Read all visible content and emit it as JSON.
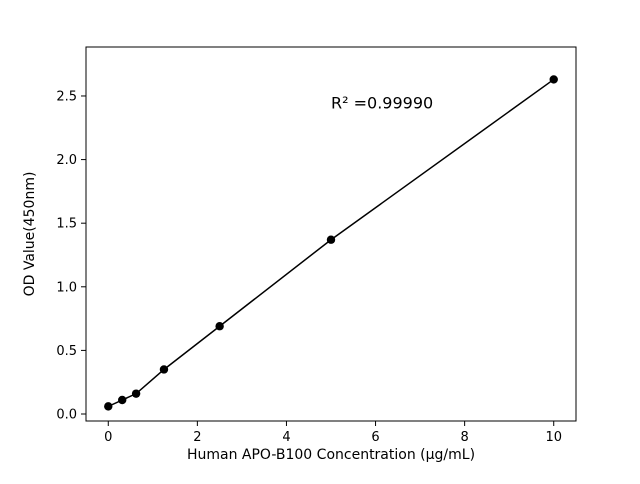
{
  "figure": {
    "background": "#ffffff",
    "line_color": "#000000",
    "marker_color": "#000000"
  },
  "chart_data": {
    "type": "scatter",
    "title": "",
    "xlabel": "Human APO-B100 Concentration (μg/mL)",
    "ylabel": "OD Value(450nm)",
    "x": [
      0,
      0.313,
      0.625,
      1.25,
      2.5,
      5,
      10
    ],
    "y": [
      0.06,
      0.11,
      0.16,
      0.35,
      0.69,
      1.37,
      2.63
    ],
    "line_through_points": true,
    "annotation": "R² =0.99990",
    "annotation_pos": {
      "x": 5.0,
      "y": 2.4
    },
    "xlim": [
      -0.5,
      10.5
    ],
    "ylim": [
      -0.055,
      2.885
    ],
    "xticks": [
      {
        "v": 0,
        "label": "0"
      },
      {
        "v": 2,
        "label": "2"
      },
      {
        "v": 4,
        "label": "4"
      },
      {
        "v": 6,
        "label": "6"
      },
      {
        "v": 8,
        "label": "8"
      },
      {
        "v": 10,
        "label": "10"
      }
    ],
    "yticks": [
      {
        "v": 0.0,
        "label": "0.0"
      },
      {
        "v": 0.5,
        "label": "0.5"
      },
      {
        "v": 1.0,
        "label": "1.0"
      },
      {
        "v": 1.5,
        "label": "1.5"
      },
      {
        "v": 2.0,
        "label": "2.0"
      },
      {
        "v": 2.5,
        "label": "2.5"
      }
    ],
    "grid": false,
    "legend": null
  }
}
